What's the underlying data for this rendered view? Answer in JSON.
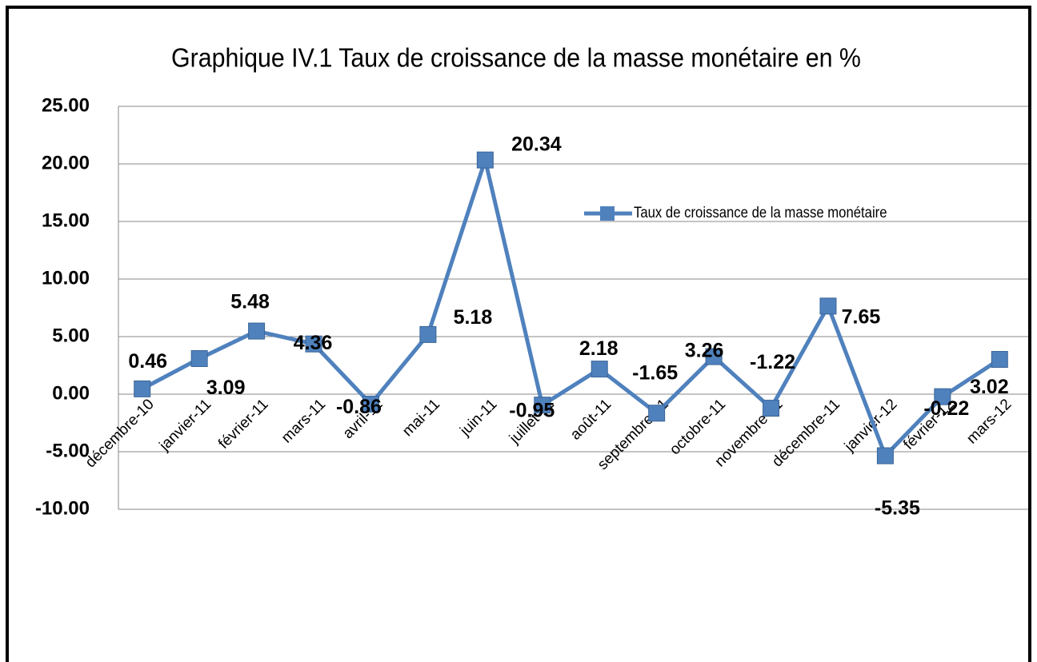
{
  "chart_data": {
    "type": "line",
    "title": "Graphique IV.1 Taux de croissance de la masse monétaire en %",
    "categories": [
      "décembre-10",
      "janvier-11",
      "février-11",
      "mars-11",
      "avril-11",
      "mai-11",
      "juin-11",
      "juillet-11",
      "août-11",
      "septembre-11",
      "octobre-11",
      "novembre-11",
      "décembre-11",
      "janvier-12",
      "février-12",
      "mars-12"
    ],
    "series": [
      {
        "name": "Taux de croissance  de la masse monétaire",
        "color": "#4f81bd",
        "values": [
          0.46,
          3.09,
          5.48,
          4.36,
          -0.86,
          5.18,
          20.34,
          -0.95,
          2.18,
          -1.65,
          3.26,
          -1.22,
          7.65,
          -5.35,
          -0.22,
          3.02
        ]
      }
    ],
    "ylim": [
      -10,
      25
    ],
    "yticks": [
      {
        "value": -10,
        "label": "-10.00"
      },
      {
        "value": -5,
        "label": "-5.00"
      },
      {
        "value": 0,
        "label": "0.00"
      },
      {
        "value": 5,
        "label": "5.00"
      },
      {
        "value": 10,
        "label": "10.00"
      },
      {
        "value": 15,
        "label": "15.00"
      },
      {
        "value": 20,
        "label": "20.00"
      },
      {
        "value": 25,
        "label": "25.00"
      }
    ],
    "grid": true,
    "legend": "right"
  }
}
